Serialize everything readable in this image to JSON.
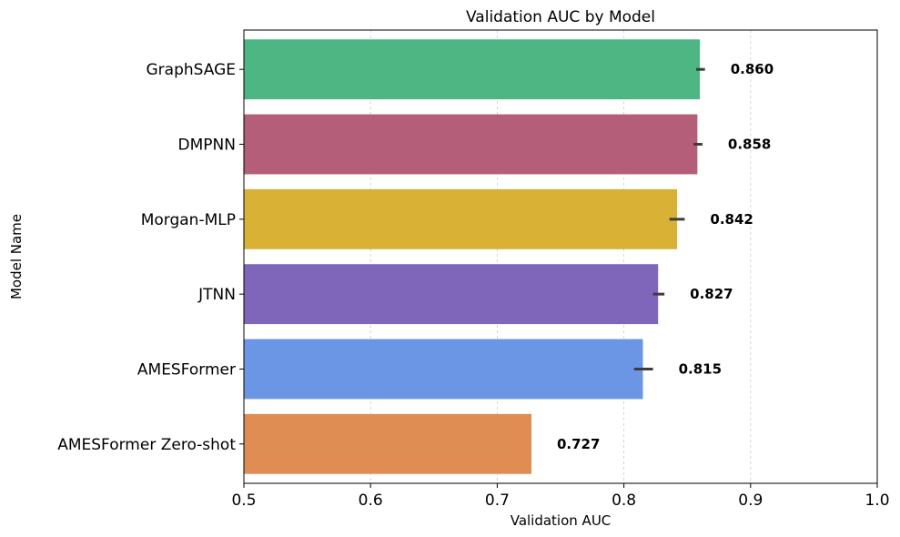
{
  "chart_data": {
    "type": "bar",
    "orientation": "horizontal",
    "title": "Validation AUC by Model",
    "xlabel": "Validation AUC",
    "ylabel": "Model Name",
    "xlim": [
      0.5,
      1.0
    ],
    "xticks": [
      0.5,
      0.6,
      0.7,
      0.8,
      0.9,
      1.0
    ],
    "xtick_labels": [
      "0.5",
      "0.6",
      "0.7",
      "0.8",
      "0.9",
      "1.0"
    ],
    "grid": "vertical-dashed",
    "categories": [
      "GraphSAGE",
      "DMPNN",
      "Morgan-MLP",
      "JTNN",
      "AMESFormer",
      "AMESFormer Zero-shot"
    ],
    "values": [
      0.86,
      0.858,
      0.842,
      0.827,
      0.815,
      0.727
    ],
    "value_labels": [
      "0.860",
      "0.858",
      "0.842",
      "0.827",
      "0.815",
      "0.727"
    ],
    "error_low": [
      0.857,
      0.855,
      0.836,
      0.823,
      0.808,
      0.727
    ],
    "error_high": [
      0.864,
      0.862,
      0.848,
      0.832,
      0.823,
      0.727
    ],
    "colors": [
      "#4db682",
      "#b55e7a",
      "#d9b135",
      "#8066bb",
      "#6b96e6",
      "#df8d53"
    ]
  }
}
